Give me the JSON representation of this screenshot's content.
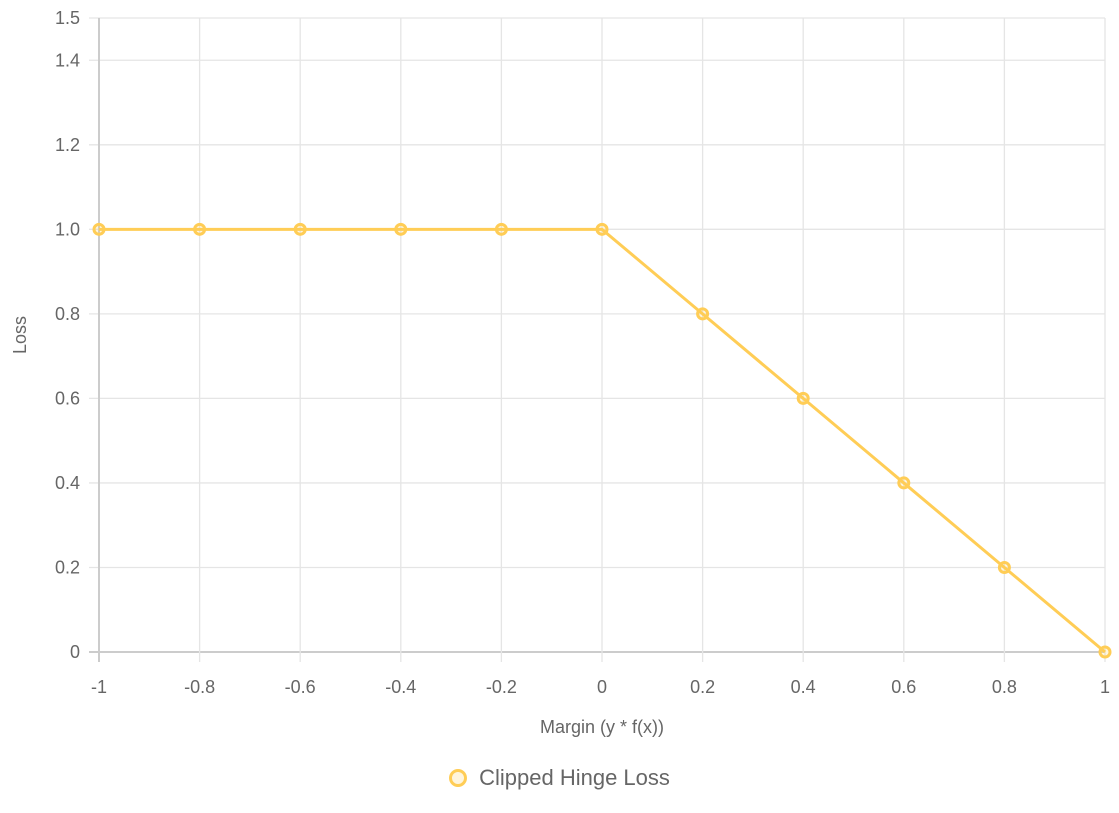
{
  "chart_data": {
    "type": "line",
    "title": "",
    "xlabel": "Margin (y * f(x))",
    "ylabel": "Loss",
    "x": [
      -1,
      -0.8,
      -0.6,
      -0.4,
      -0.2,
      0,
      0.2,
      0.4,
      0.6,
      0.8,
      1
    ],
    "x_tick_labels": [
      "-1",
      "-0.8",
      "-0.6",
      "-0.4",
      "-0.2",
      "0",
      "0.2",
      "0.4",
      "0.6",
      "0.8",
      "1"
    ],
    "y_ticks": [
      0,
      0.2,
      0.4,
      0.6,
      0.8,
      1.0,
      1.2,
      1.4,
      1.5
    ],
    "y_tick_labels": [
      "0",
      "0.2",
      "0.4",
      "0.6",
      "0.8",
      "1.0",
      "1.2",
      "1.4",
      "1.5"
    ],
    "xlim": [
      -1,
      1
    ],
    "ylim": [
      0,
      1.5
    ],
    "grid": true,
    "legend_position": "bottom",
    "series": [
      {
        "name": "Clipped Hinge Loss",
        "color": "#FFCD56",
        "values": [
          1.0,
          1.0,
          1.0,
          1.0,
          1.0,
          1.0,
          0.8,
          0.6,
          0.4,
          0.2,
          0.0
        ]
      }
    ]
  },
  "legend": {
    "items": [
      {
        "label": "Clipped Hinge Loss",
        "color": "#FFCD56"
      }
    ]
  },
  "colors": {
    "grid": "#e5e5e5",
    "axis": "#cccccc",
    "text": "#666666"
  }
}
